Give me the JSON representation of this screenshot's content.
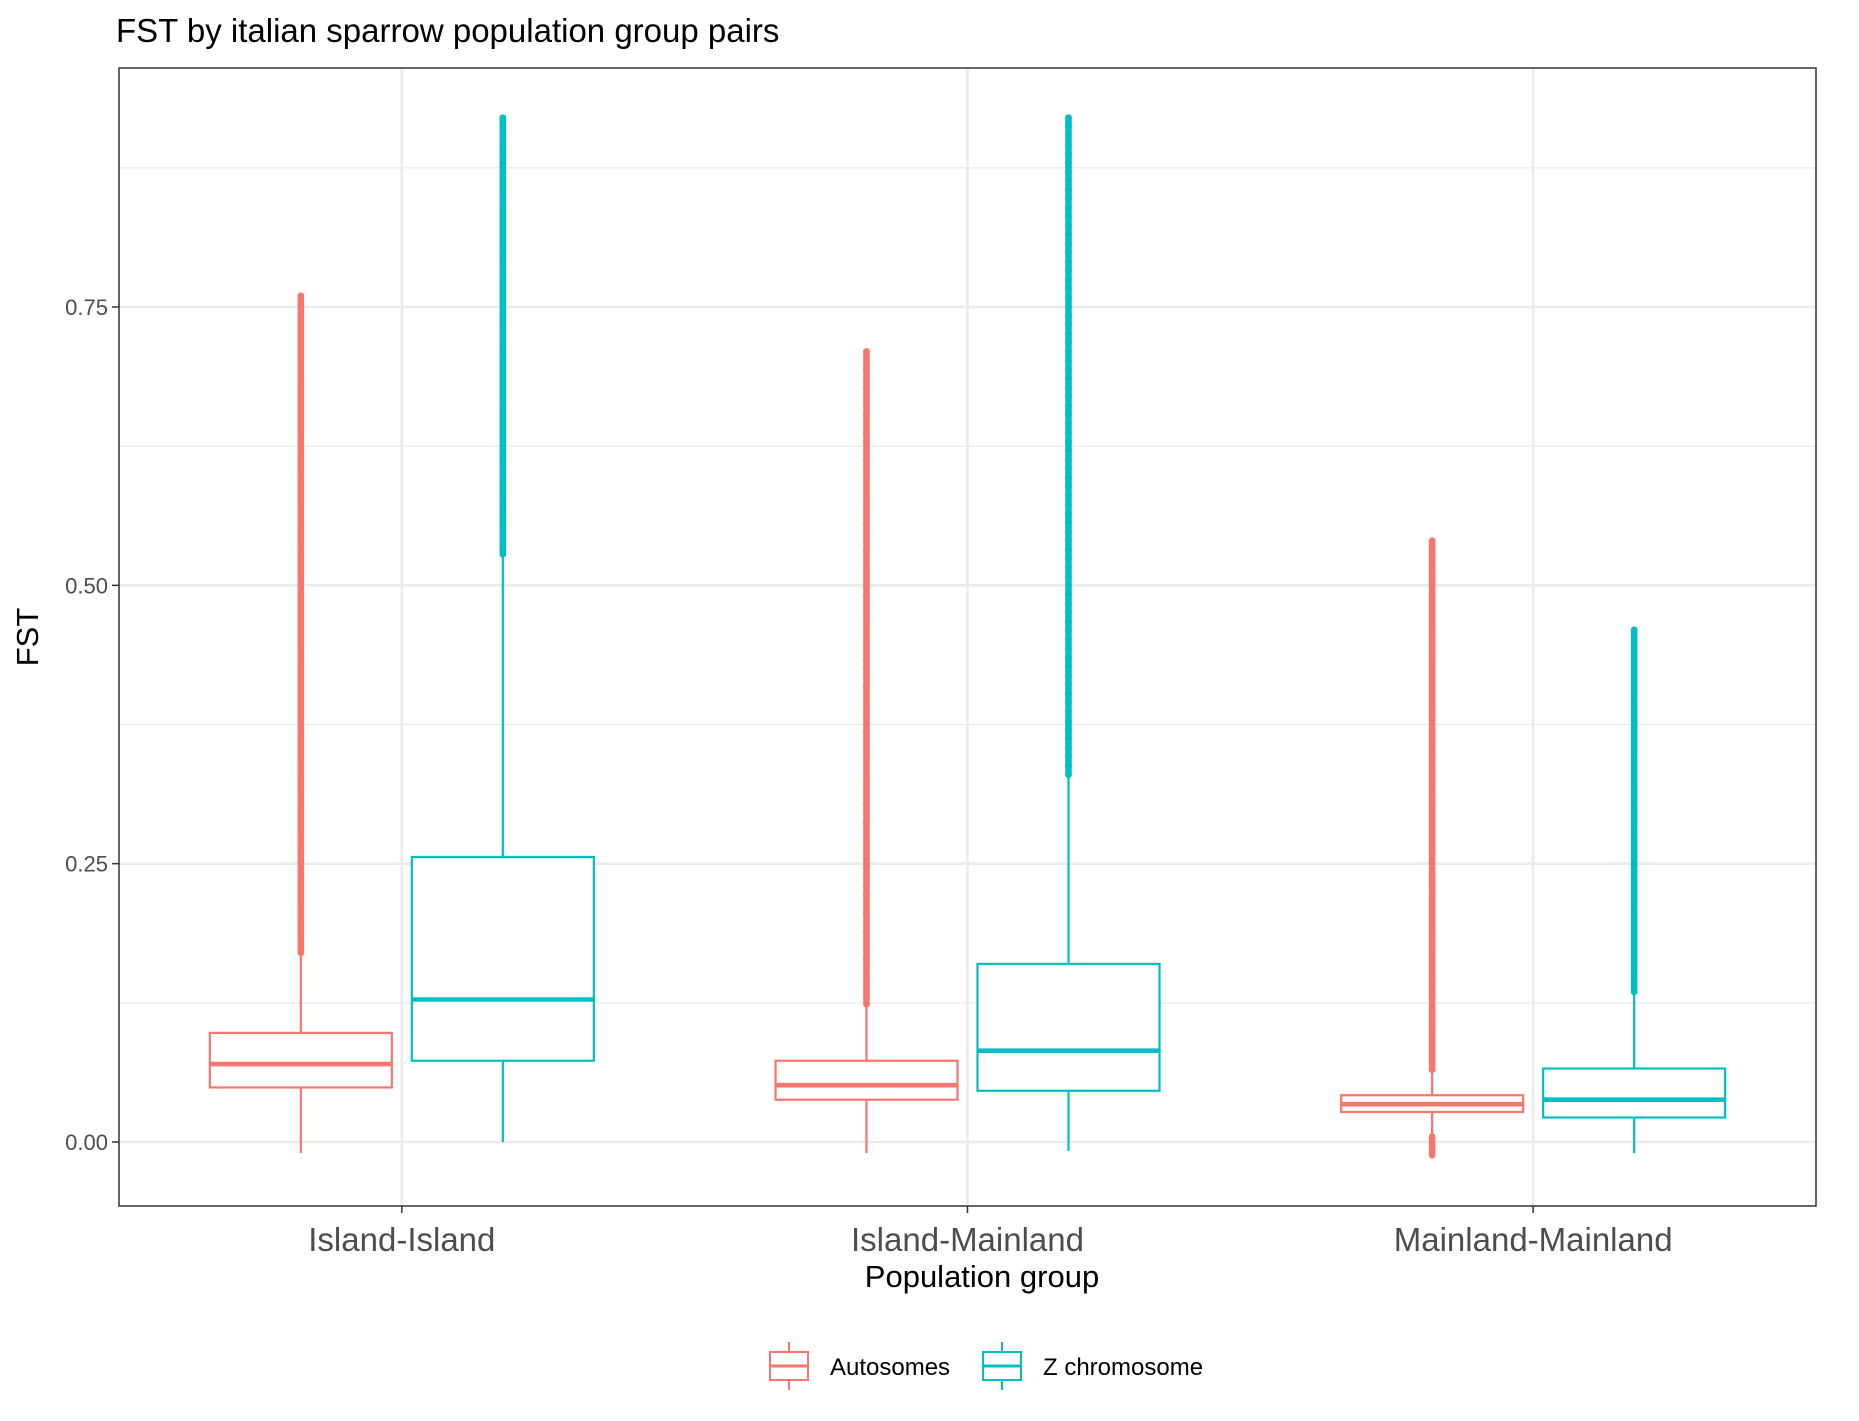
{
  "chart_data": {
    "type": "boxplot",
    "title": "FST by italian sparrow population group pairs",
    "xlabel": "Population group",
    "ylabel": "FST",
    "ylim": [
      -0.055,
      0.97
    ],
    "yticks": [
      0.0,
      0.25,
      0.5,
      0.75
    ],
    "ytick_labels": [
      "0.00",
      "0.25",
      "0.50",
      "0.75"
    ],
    "categories": [
      "Island-Island",
      "Island-Mainland",
      "Mainland-Mainland"
    ],
    "grid": true,
    "legend_position": "bottom",
    "series": [
      {
        "name": "Autosomes",
        "color": "#F8766D",
        "boxes": [
          {
            "lower": -0.01,
            "q1": 0.049,
            "median": 0.07,
            "q3": 0.098,
            "upper": 0.17,
            "outlier_min": 0.17,
            "outlier_max": 0.76
          },
          {
            "lower": -0.01,
            "q1": 0.038,
            "median": 0.051,
            "q3": 0.073,
            "upper": 0.124,
            "outlier_min": 0.124,
            "outlier_max": 0.71
          },
          {
            "lower": -0.012,
            "q1": 0.027,
            "median": 0.034,
            "q3": 0.042,
            "upper": 0.065,
            "outlier_min": 0.065,
            "outlier_max": 0.54,
            "outlier_low_min": -0.012,
            "outlier_low_max": 0.005
          }
        ]
      },
      {
        "name": "Z chromosome",
        "color": "#00BFC4",
        "boxes": [
          {
            "lower": 0.0,
            "q1": 0.073,
            "median": 0.128,
            "q3": 0.256,
            "upper": 0.528,
            "outlier_min": 0.528,
            "outlier_max": 0.92
          },
          {
            "lower": -0.008,
            "q1": 0.046,
            "median": 0.082,
            "q3": 0.16,
            "upper": 0.33,
            "outlier_min": 0.33,
            "outlier_max": 0.92
          },
          {
            "lower": -0.01,
            "q1": 0.022,
            "median": 0.038,
            "q3": 0.066,
            "upper": 0.135,
            "outlier_min": 0.135,
            "outlier_max": 0.46
          }
        ]
      }
    ]
  }
}
